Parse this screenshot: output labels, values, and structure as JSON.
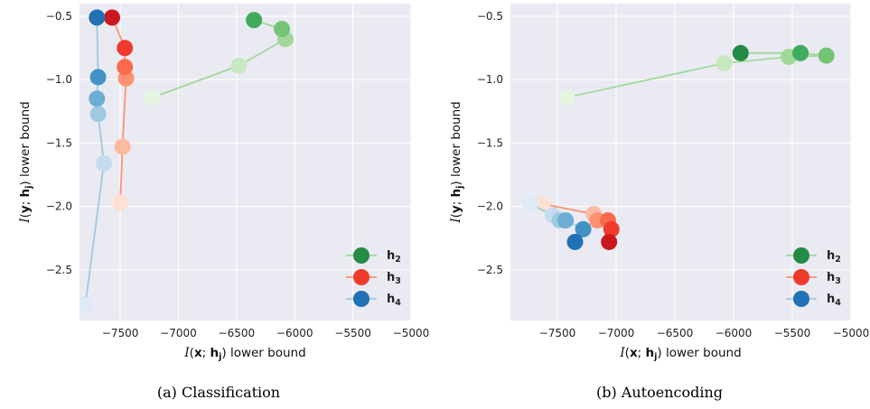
{
  "chart_data": [
    {
      "type": "scatter",
      "caption": "(a) Classification",
      "xlabel": "I(x; h_j) lower bound",
      "ylabel": "I(y; h_j) lower bound",
      "xlim": [
        -7850,
        -5000
      ],
      "ylim": [
        -2.9,
        -0.4
      ],
      "xticks": [
        -7500,
        -7000,
        -6500,
        -6000,
        -5500,
        -5000
      ],
      "xtick_labels": [
        "−7500",
        "−7000",
        "−6500",
        "−6000",
        "−5500",
        "−5000"
      ],
      "yticks": [
        -0.5,
        -1.0,
        -1.5,
        -2.0,
        -2.5
      ],
      "ytick_labels": [
        "−0.5",
        "−1.0",
        "−1.5",
        "−2.0",
        "−2.5"
      ],
      "grid": true,
      "legend_position": "lower-right",
      "series": [
        {
          "name": "h2",
          "x": [
            -7220,
            -6480,
            -6080,
            -6110,
            -6350
          ],
          "y": [
            -1.14,
            -0.89,
            -0.68,
            -0.6,
            -0.53
          ],
          "colors": [
            "#e5f5e0",
            "#c7e9c0",
            "#a1d99b",
            "#74c476",
            "#41ab5d"
          ]
        },
        {
          "name": "h3",
          "x": [
            -7500,
            -7480,
            -7450,
            -7460,
            -7460,
            -7570
          ],
          "y": [
            -1.97,
            -1.53,
            -0.99,
            -0.9,
            -0.75,
            -0.51
          ],
          "colors": [
            "#fee0d2",
            "#fcbba1",
            "#fc9272",
            "#fb6a4a",
            "#ef3b2c",
            "#cb181d"
          ]
        },
        {
          "name": "h4",
          "x": [
            -7800,
            -7640,
            -7690,
            -7700,
            -7690,
            -7700
          ],
          "y": [
            -2.78,
            -1.66,
            -1.27,
            -1.15,
            -0.98,
            -0.51
          ],
          "colors": [
            "#deebf7",
            "#c6dbef",
            "#9ecae1",
            "#6baed6",
            "#4292c6",
            "#2171b5"
          ]
        }
      ]
    },
    {
      "type": "scatter",
      "caption": "(b) Autoencoding",
      "xlabel": "I(x; h_j) lower bound",
      "ylabel": "I(y; h_j) lower bound",
      "xlim": [
        -7900,
        -5000
      ],
      "ylim": [
        -2.9,
        -0.4
      ],
      "xticks": [
        -7500,
        -7000,
        -6500,
        -6000,
        -5500,
        -5000
      ],
      "xtick_labels": [
        "−7500",
        "−7000",
        "−6500",
        "−6000",
        "−5500",
        "−5000"
      ],
      "yticks": [
        -0.5,
        -1.0,
        -1.5,
        -2.0,
        -2.5
      ],
      "ytick_labels": [
        "−0.5",
        "−1.0",
        "−1.5",
        "−2.0",
        "−2.5"
      ],
      "grid": true,
      "legend_position": "lower-right",
      "series": [
        {
          "name": "h2",
          "x": [
            -7420,
            -6080,
            -5530,
            -5210,
            -5430,
            -5940
          ],
          "y": [
            -1.14,
            -0.87,
            -0.82,
            -0.81,
            -0.79,
            -0.79
          ],
          "colors": [
            "#e5f5e0",
            "#c7e9c0",
            "#a1d99b",
            "#74c476",
            "#41ab5d",
            "#238b45"
          ]
        },
        {
          "name": "h3",
          "x": [
            -7630,
            -7190,
            -7160,
            -7070,
            -7040,
            -7060
          ],
          "y": [
            -1.98,
            -2.06,
            -2.11,
            -2.11,
            -2.18,
            -2.28
          ],
          "colors": [
            "#fee0d2",
            "#fcbba1",
            "#fc9272",
            "#fb6a4a",
            "#ef3b2c",
            "#cb181d"
          ]
        },
        {
          "name": "h4",
          "x": [
            -7730,
            -7540,
            -7480,
            -7430,
            -7280,
            -7350
          ],
          "y": [
            -1.98,
            -2.07,
            -2.11,
            -2.11,
            -2.18,
            -2.28
          ],
          "colors": [
            "#deebf7",
            "#c6dbef",
            "#9ecae1",
            "#6baed6",
            "#4292c6",
            "#2171b5"
          ]
        }
      ]
    }
  ],
  "legend_colors": {
    "h2": "#238b45",
    "h3": "#ef3b2c",
    "h4": "#2171b5"
  },
  "line_colors": {
    "h2": "#a1d99b",
    "h3": "#fc9272",
    "h4": "#9ecae1"
  },
  "theme": {
    "panel_bg": "#eaeaf2",
    "grid": "#ffffff"
  }
}
